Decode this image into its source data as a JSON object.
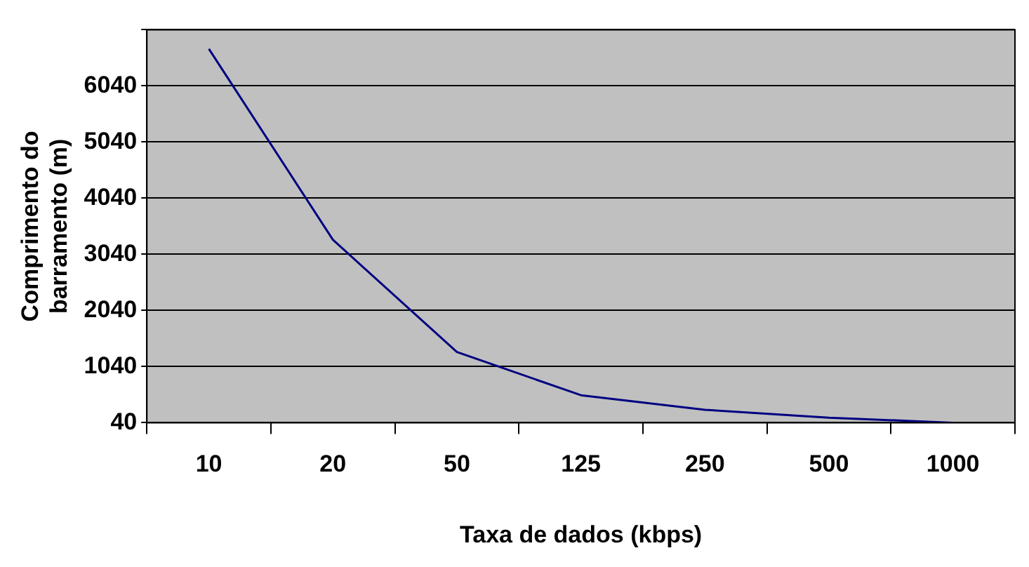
{
  "chart_data": {
    "type": "line",
    "xlabel": "Taxa de dados (kbps)",
    "ylabel": "Comprimento do barramento (m)",
    "categories": [
      "10",
      "20",
      "50",
      "125",
      "250",
      "500",
      "1000"
    ],
    "series": [
      {
        "color": "#000080",
        "values": [
          6700,
          3300,
          1300,
          530,
          270,
          130,
          40
        ]
      }
    ],
    "ylim": [
      40,
      7040
    ],
    "yticks": [
      40,
      1040,
      2040,
      3040,
      4040,
      5040,
      6040,
      {
        "value": 7040,
        "label": null
      }
    ],
    "grid": "y",
    "legend": false,
    "marker": "none",
    "line_style": "solid"
  }
}
